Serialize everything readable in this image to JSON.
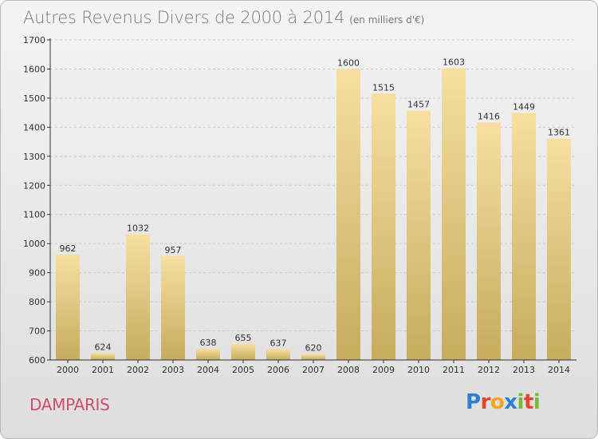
{
  "header": {
    "title": "Autres Revenus Divers de 2000 à 2014",
    "subtitle": "(en milliers d'€)"
  },
  "footer": {
    "commune": "DAMPARIS",
    "logo_letters": [
      {
        "ch": "P",
        "color": "#2f7fd0"
      },
      {
        "ch": "r",
        "color": "#e5452c"
      },
      {
        "ch": "o",
        "color": "#f2a51d"
      },
      {
        "ch": "x",
        "color": "#2f7fd0"
      },
      {
        "ch": "i",
        "color": "#7cb83a"
      },
      {
        "ch": "t",
        "color": "#e5452c"
      },
      {
        "ch": "i",
        "color": "#7cb83a"
      }
    ]
  },
  "colors": {
    "bar_top": "#f6dfa0",
    "bar_bottom": "#c7ac5e",
    "axis": "#333333",
    "grid": "#c9c9c9",
    "commune": "#d14d6b"
  },
  "chart_data": {
    "type": "bar",
    "categories": [
      "2000",
      "2001",
      "2002",
      "2003",
      "2004",
      "2005",
      "2006",
      "2007",
      "2008",
      "2009",
      "2010",
      "2011",
      "2012",
      "2013",
      "2014"
    ],
    "values": [
      962,
      624,
      1032,
      957,
      638,
      655,
      637,
      620,
      1600,
      1515,
      1457,
      1603,
      1416,
      1449,
      1361
    ],
    "data_labels": [
      "962",
      "624",
      "1032",
      "957",
      "638",
      "655",
      "637",
      "620",
      "1600",
      "1515",
      "1457",
      "1603",
      "1416",
      "1449",
      "1361"
    ],
    "ylim": [
      600,
      1700
    ],
    "yticks": [
      600,
      700,
      800,
      900,
      1000,
      1100,
      1200,
      1300,
      1400,
      1500,
      1600,
      1700
    ],
    "ytick_labels": [
      "600",
      "700",
      "800",
      "900",
      "1000",
      "1100",
      "1200",
      "1300",
      "1400",
      "1500",
      "1600",
      "1700"
    ],
    "grid": true,
    "title": "Autres Revenus Divers de 2000 à 2014",
    "unit": "(en milliers d'€)"
  }
}
